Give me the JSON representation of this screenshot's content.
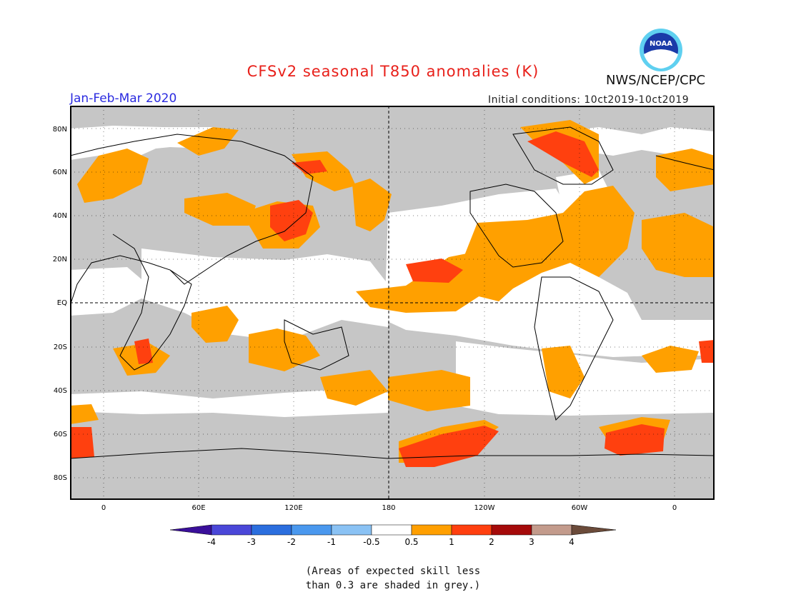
{
  "title": "CFSv2 seasonal T850 anomalies (K)",
  "agency": "NWS/NCEP/CPC",
  "logo_text": "NOAA",
  "period": "Jan-Feb-Mar 2020",
  "initial_conditions": "Initial conditions: 10ct2019-10ct2019",
  "lat_labels": [
    "80N",
    "60N",
    "40N",
    "20N",
    "EQ",
    "20S",
    "40S",
    "60S",
    "80S"
  ],
  "lon_labels": [
    "0",
    "60E",
    "120E",
    "180",
    "120W",
    "60W",
    "0"
  ],
  "colorbar": {
    "labels": [
      "-4",
      "-3",
      "-2",
      "-1",
      "-0.5",
      "0.5",
      "1",
      "2",
      "3",
      "4"
    ],
    "colors": [
      "#3a0f9a",
      "#4a47d8",
      "#2b6ede",
      "#4a98ee",
      "#8ac2f4",
      "#ffffff",
      "#ff9f00",
      "#ff3f0f",
      "#a50a0a",
      "#c39b8c",
      "#6b4b3a"
    ]
  },
  "note_line1": "(Areas of expected skill less",
  "note_line2": "than 0.3 are shaded in grey.)",
  "colors": {
    "grey": "#c6c6c6",
    "white": "#ffffff",
    "orange": "#ffa000",
    "red": "#ff400f",
    "title": "#e8201a",
    "period": "#2a2ae0"
  }
}
